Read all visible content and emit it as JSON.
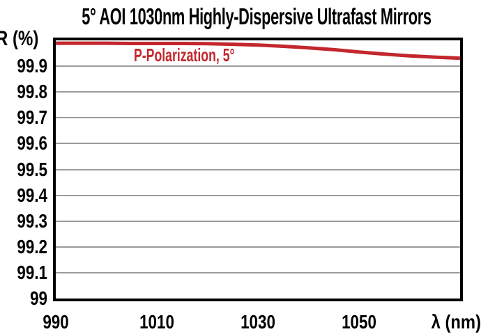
{
  "title": "5° AOI 1030nm Highly-Dispersive Ultrafast Mirrors",
  "axes": {
    "y_label": "R (%)",
    "x_label": "λ (nm)",
    "y_tick_labels": [
      "99.9",
      "99.8",
      "99.7",
      "99.6",
      "99.5",
      "99.4",
      "99.3",
      "99.2",
      "99.1",
      "99"
    ],
    "x_tick_labels": [
      "990",
      "1010",
      "1030",
      "1050"
    ]
  },
  "legend": {
    "label": "P-Polarization, 5°"
  },
  "colors": {
    "line_red": "#C3272D",
    "grid_gray": "#9B9B9B",
    "frame_black": "#000000",
    "text_black": "#000000"
  },
  "chart_data": {
    "type": "line",
    "title": "5° AOI 1030nm Highly-Dispersive Ultrafast Mirrors",
    "xlabel": "λ (nm)",
    "ylabel": "R (%)",
    "xlim": [
      990,
      1070
    ],
    "ylim": [
      99,
      100
    ],
    "x_ticks": [
      990,
      1010,
      1030,
      1050
    ],
    "y_tick_step": 0.1,
    "grid": "horizontal",
    "legend_position": "top-left-inside",
    "series": [
      {
        "name": "P-Polarization, 5°",
        "color": "#C3272D",
        "x": [
          990,
          995,
          1000,
          1005,
          1010,
          1015,
          1020,
          1025,
          1030,
          1035,
          1040,
          1045,
          1050,
          1055,
          1060,
          1065,
          1070
        ],
        "y": [
          99.989,
          99.989,
          99.989,
          99.988,
          99.988,
          99.988,
          99.987,
          99.985,
          99.982,
          99.977,
          99.971,
          99.964,
          99.955,
          99.947,
          99.94,
          99.935,
          99.931
        ]
      }
    ]
  }
}
